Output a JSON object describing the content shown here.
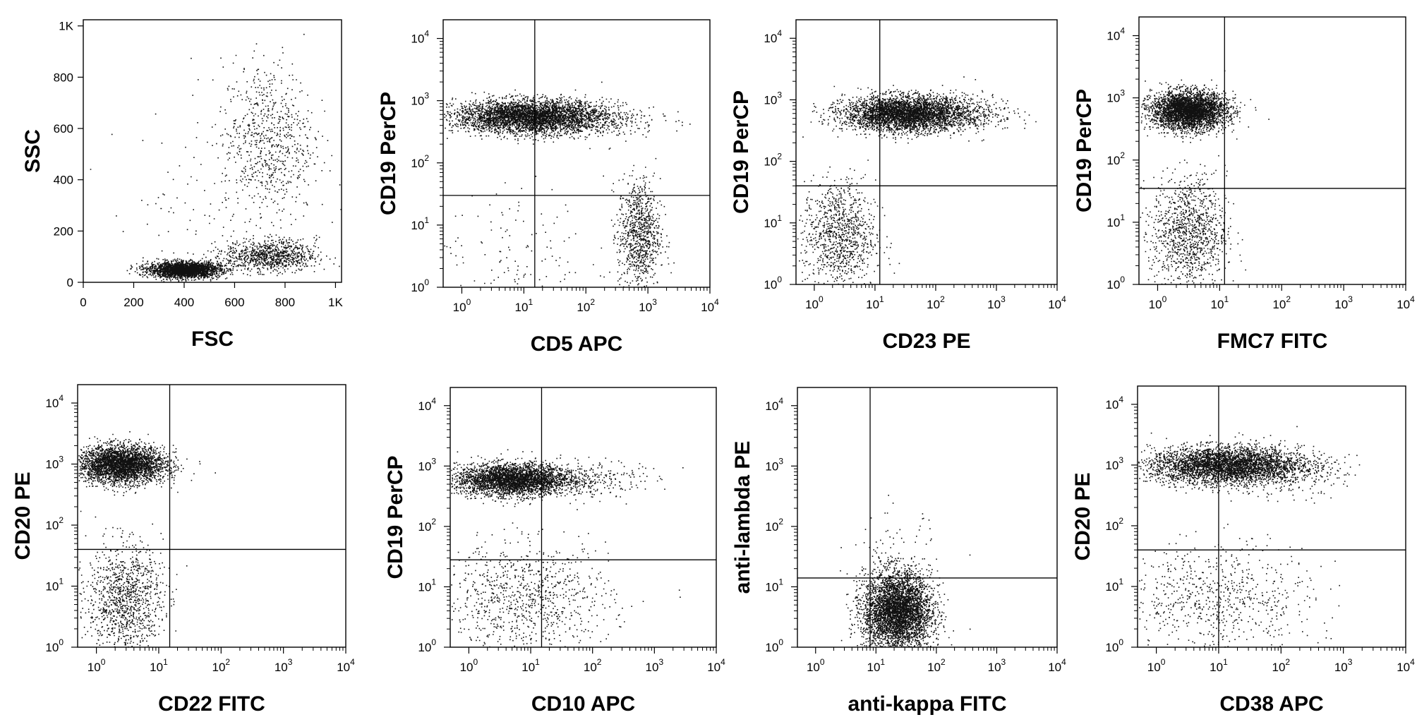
{
  "chart_data": [
    {
      "type": "scatter",
      "scale": "linear",
      "xlabel": "FSC",
      "ylabel": "SSC",
      "xlim": [
        0,
        1024
      ],
      "ylim": [
        0,
        1024
      ],
      "xticks": [
        "0",
        "200",
        "400",
        "600",
        "800",
        "1K"
      ],
      "yticks": [
        "0",
        "200",
        "400",
        "600",
        "800",
        "1K"
      ],
      "tick_values": [
        0,
        200,
        400,
        600,
        800,
        1000
      ],
      "populations": [
        {
          "cx": 400,
          "cy": 50,
          "sx": 70,
          "sy": 15,
          "n": 2600
        },
        {
          "cx": 740,
          "cy": 105,
          "sx": 90,
          "sy": 30,
          "n": 900
        },
        {
          "cx": 730,
          "cy": 560,
          "sx": 90,
          "sy": 150,
          "n": 700
        },
        {
          "cx": 550,
          "cy": 300,
          "sx": 220,
          "sy": 200,
          "n": 160
        }
      ]
    },
    {
      "type": "scatter",
      "scale": "log",
      "xlabel": "CD5 APC",
      "ylabel": "CD19 PerCP",
      "xlim": [
        0.5,
        10000
      ],
      "ylim": [
        1,
        20000
      ],
      "quadrant": {
        "x": 15,
        "y": 30
      },
      "populations": [
        {
          "cx": 1.1,
          "cy": 2.75,
          "sx": 0.6,
          "sy": 0.13,
          "n": 4000
        },
        {
          "cx": 2.85,
          "cy": 0.85,
          "sx": 0.17,
          "sy": 0.45,
          "n": 900
        },
        {
          "cx": 0.8,
          "cy": 0.6,
          "sx": 0.6,
          "sy": 0.5,
          "n": 120
        },
        {
          "cx": 2.0,
          "cy": 2.7,
          "sx": 0.6,
          "sy": 0.15,
          "n": 300
        }
      ]
    },
    {
      "type": "scatter",
      "scale": "log",
      "xlabel": "CD23 PE",
      "ylabel": "CD19 PerCP",
      "xlim": [
        0.5,
        10000
      ],
      "ylim": [
        1,
        20000
      ],
      "quadrant": {
        "x": 12,
        "y": 40
      },
      "populations": [
        {
          "cx": 1.5,
          "cy": 2.78,
          "sx": 0.5,
          "sy": 0.14,
          "n": 3800
        },
        {
          "cx": 0.4,
          "cy": 0.8,
          "sx": 0.3,
          "sy": 0.45,
          "n": 1000
        },
        {
          "cx": 2.5,
          "cy": 2.8,
          "sx": 0.4,
          "sy": 0.15,
          "n": 300
        }
      ]
    },
    {
      "type": "scatter",
      "scale": "log",
      "xlabel": "FMC7 FITC",
      "ylabel": "CD19 PerCP",
      "xlim": [
        0.5,
        10000
      ],
      "ylim": [
        1,
        20000
      ],
      "quadrant": {
        "x": 12,
        "y": 35
      },
      "populations": [
        {
          "cx": 0.5,
          "cy": 2.8,
          "sx": 0.3,
          "sy": 0.15,
          "n": 3600
        },
        {
          "cx": 0.5,
          "cy": 0.85,
          "sx": 0.3,
          "sy": 0.45,
          "n": 1100
        }
      ]
    },
    {
      "type": "scatter",
      "scale": "log",
      "xlabel": "CD22 FITC",
      "ylabel": "CD20 PE",
      "xlim": [
        0.5,
        10000
      ],
      "ylim": [
        1,
        20000
      ],
      "quadrant": {
        "x": 15,
        "y": 40
      },
      "populations": [
        {
          "cx": 0.4,
          "cy": 3.0,
          "sx": 0.35,
          "sy": 0.15,
          "n": 3300
        },
        {
          "cx": 0.45,
          "cy": 0.8,
          "sx": 0.3,
          "sy": 0.45,
          "n": 1100
        }
      ]
    },
    {
      "type": "scatter",
      "scale": "log",
      "xlabel": "CD10 APC",
      "ylabel": "CD19 PerCP",
      "xlim": [
        0.5,
        10000
      ],
      "ylim": [
        1,
        20000
      ],
      "quadrant": {
        "x": 15,
        "y": 28
      },
      "populations": [
        {
          "cx": 0.7,
          "cy": 2.78,
          "sx": 0.45,
          "sy": 0.13,
          "n": 3300
        },
        {
          "cx": 0.9,
          "cy": 0.8,
          "sx": 0.7,
          "sy": 0.45,
          "n": 900
        },
        {
          "cx": 1.8,
          "cy": 2.8,
          "sx": 0.5,
          "sy": 0.15,
          "n": 300
        }
      ]
    },
    {
      "type": "scatter",
      "scale": "log",
      "xlabel": "anti-kappa FITC",
      "ylabel": "anti-lambda PE",
      "xlim": [
        0.5,
        10000
      ],
      "ylim": [
        1,
        20000
      ],
      "quadrant": {
        "x": 8,
        "y": 14
      },
      "populations": [
        {
          "cx": 1.35,
          "cy": 0.6,
          "sx": 0.28,
          "sy": 0.32,
          "n": 4200
        },
        {
          "cx": 1.3,
          "cy": 1.4,
          "sx": 0.35,
          "sy": 0.4,
          "n": 100
        }
      ]
    },
    {
      "type": "scatter",
      "scale": "log",
      "xlabel": "CD38 APC",
      "ylabel": "CD20 PE",
      "xlim": [
        0.5,
        10000
      ],
      "ylim": [
        1,
        20000
      ],
      "quadrant": {
        "x": 10,
        "y": 40
      },
      "populations": [
        {
          "cx": 1.1,
          "cy": 3.0,
          "sx": 0.6,
          "sy": 0.15,
          "n": 3700
        },
        {
          "cx": 1.0,
          "cy": 0.8,
          "sx": 0.75,
          "sy": 0.45,
          "n": 700
        },
        {
          "cx": 2.0,
          "cy": 2.9,
          "sx": 0.5,
          "sy": 0.2,
          "n": 300
        }
      ]
    }
  ]
}
